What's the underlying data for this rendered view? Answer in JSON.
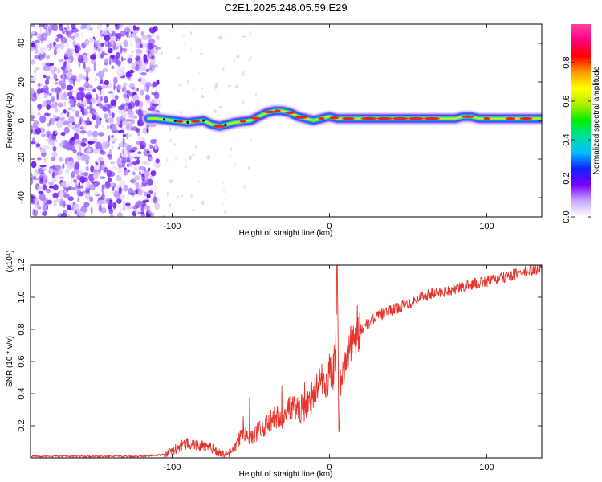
{
  "figure_title": "C2E1.2025.248.05.59.E29",
  "chart_data": [
    {
      "type": "heatmap",
      "title": "C2E1.2025.248.05.59.E29",
      "xlabel": "Height of straight line (km)",
      "ylabel": "Frequency (Hz)",
      "xlim": [
        -190,
        135
      ],
      "ylim": [
        -50,
        50
      ],
      "xticks": [
        -100,
        0,
        100
      ],
      "xtick_labels": [
        "-100",
        "0",
        "100"
      ],
      "yticks": [
        -40,
        -20,
        0,
        20,
        40
      ],
      "ytick_labels": [
        "-40",
        "-20",
        "0",
        "20",
        "40"
      ],
      "colorbar": {
        "label": "Normalized spectral amplitude",
        "range": [
          0.0,
          1.0
        ],
        "ticks": [
          0.0,
          0.2,
          0.4,
          0.6,
          0.8
        ],
        "tick_labels": [
          "0.0",
          "0.2",
          "0.4",
          "0.6",
          "0.8"
        ],
        "colormap": [
          "#ffffff",
          "#c9a8ff",
          "#7a00ff",
          "#1020ff",
          "#00bfff",
          "#00e0a0",
          "#00ee00",
          "#b0ee00",
          "#ffff00",
          "#ff9900",
          "#ff0000",
          "#ff0080",
          "#ff40a0"
        ]
      },
      "ridge": {
        "x": [
          -115,
          -110,
          -100,
          -90,
          -80,
          -75,
          -70,
          -60,
          -50,
          -40,
          -35,
          -30,
          -25,
          -20,
          -15,
          -10,
          -5,
          0,
          5,
          10,
          20,
          40,
          60,
          80,
          85,
          90,
          95,
          100,
          110,
          135
        ],
        "y": [
          1,
          1,
          0,
          -1,
          0,
          -2,
          -3,
          -1,
          0,
          4,
          5,
          5,
          4,
          2,
          1,
          0,
          1,
          2,
          1,
          1,
          1,
          1,
          1,
          1,
          2,
          2,
          1,
          1,
          1,
          1
        ]
      },
      "noise_region": [
        -190,
        -115
      ]
    },
    {
      "type": "line",
      "title": "",
      "xlabel": "Height of straight line (km)",
      "ylabel": "SNR (10 * v/v)",
      "y_multiplier": "(x10⁴)",
      "xlim": [
        -190,
        135
      ],
      "ylim": [
        0,
        1.2
      ],
      "xticks": [
        -100,
        0,
        100
      ],
      "xtick_labels": [
        "-100",
        "0",
        "100"
      ],
      "yticks": [
        0.2,
        0.4,
        0.6,
        0.8,
        1.0,
        1.2
      ],
      "ytick_labels": [
        "0.2",
        "0.4",
        "0.6",
        "0.8",
        "1.0",
        "1.2"
      ],
      "color": "#e8322a",
      "series": [
        {
          "name": "SNR",
          "x": [
            -190,
            -150,
            -120,
            -105,
            -100,
            -95,
            -90,
            -85,
            -80,
            -75,
            -70,
            -65,
            -60,
            -55,
            -50,
            -45,
            -40,
            -35,
            -30,
            -25,
            -20,
            -15,
            -10,
            -5,
            0,
            2,
            4,
            5,
            6,
            7,
            8,
            9,
            10,
            12,
            15,
            20,
            25,
            30,
            40,
            50,
            60,
            70,
            80,
            90,
            100,
            110,
            120,
            130,
            135
          ],
          "y": [
            0.01,
            0.01,
            0.01,
            0.02,
            0.04,
            0.07,
            0.09,
            0.08,
            0.07,
            0.06,
            0.03,
            0.02,
            0.06,
            0.16,
            0.12,
            0.17,
            0.2,
            0.25,
            0.25,
            0.3,
            0.3,
            0.32,
            0.4,
            0.46,
            0.52,
            0.55,
            0.6,
            1.2,
            0.18,
            0.45,
            0.5,
            0.54,
            0.6,
            0.66,
            0.74,
            0.8,
            0.84,
            0.88,
            0.92,
            0.96,
            1.01,
            1.03,
            1.05,
            1.08,
            1.1,
            1.12,
            1.15,
            1.17,
            1.18
          ]
        }
      ]
    }
  ]
}
